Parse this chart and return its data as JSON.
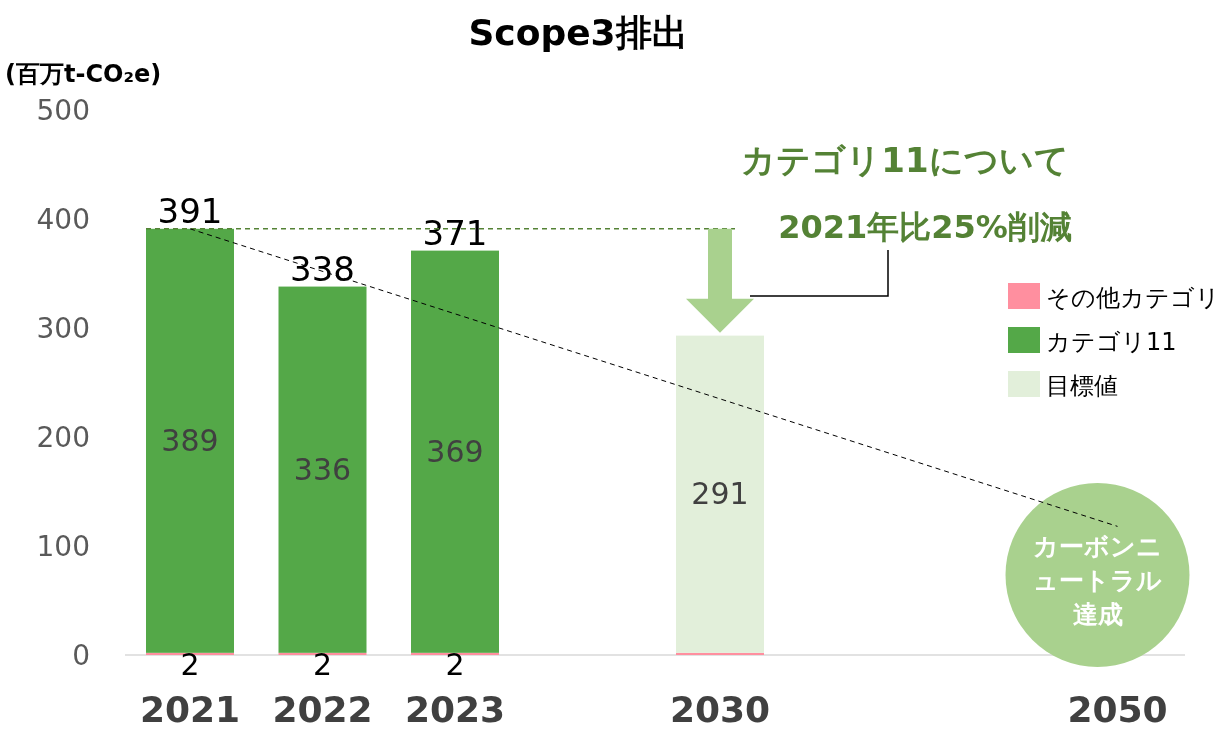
{
  "chart_data": {
    "type": "bar",
    "stacked": true,
    "title": "Scope3排出",
    "ylabel": "(百万t-CO₂e)",
    "categories": [
      "2021",
      "2022",
      "2023",
      null,
      "2030",
      null,
      null,
      "2050"
    ],
    "series": [
      {
        "name": "その他カテゴリ",
        "color": "#ff8f9f",
        "values": [
          2,
          2,
          2,
          null,
          2,
          null,
          null,
          null
        ],
        "value_labels": [
          "2",
          "2",
          "2",
          null,
          null,
          null,
          null,
          null
        ]
      },
      {
        "name": "カテゴリ11",
        "color": "#54a848",
        "values": [
          389,
          336,
          369,
          null,
          null,
          null,
          null,
          null
        ],
        "value_labels": [
          "389",
          "336",
          "369",
          null,
          null,
          null,
          null,
          null
        ]
      },
      {
        "name": "目標値",
        "color": "#e2efda",
        "values": [
          null,
          null,
          null,
          null,
          291,
          null,
          null,
          null
        ],
        "value_labels": [
          null,
          null,
          null,
          null,
          "291",
          null,
          null,
          null
        ]
      },
      {
        "type": "line",
        "color": "#000000",
        "line_style": "dashed",
        "values": [
          391,
          null,
          null,
          null,
          null,
          null,
          null,
          118
        ]
      }
    ],
    "totals": [
      "391",
      "338",
      "371",
      null,
      null,
      null,
      null,
      null
    ],
    "ylim": [
      0,
      500
    ],
    "yticks": [
      0,
      100,
      200,
      300,
      400,
      500
    ],
    "ref_lines": [
      {
        "axis": "y",
        "value": 391,
        "color": "#548235",
        "line_style": "dashed"
      }
    ],
    "legend": "right",
    "annotations": [
      "カテゴリ11について",
      "2021年比25%削減",
      "カーボンニュートラル達成"
    ]
  }
}
